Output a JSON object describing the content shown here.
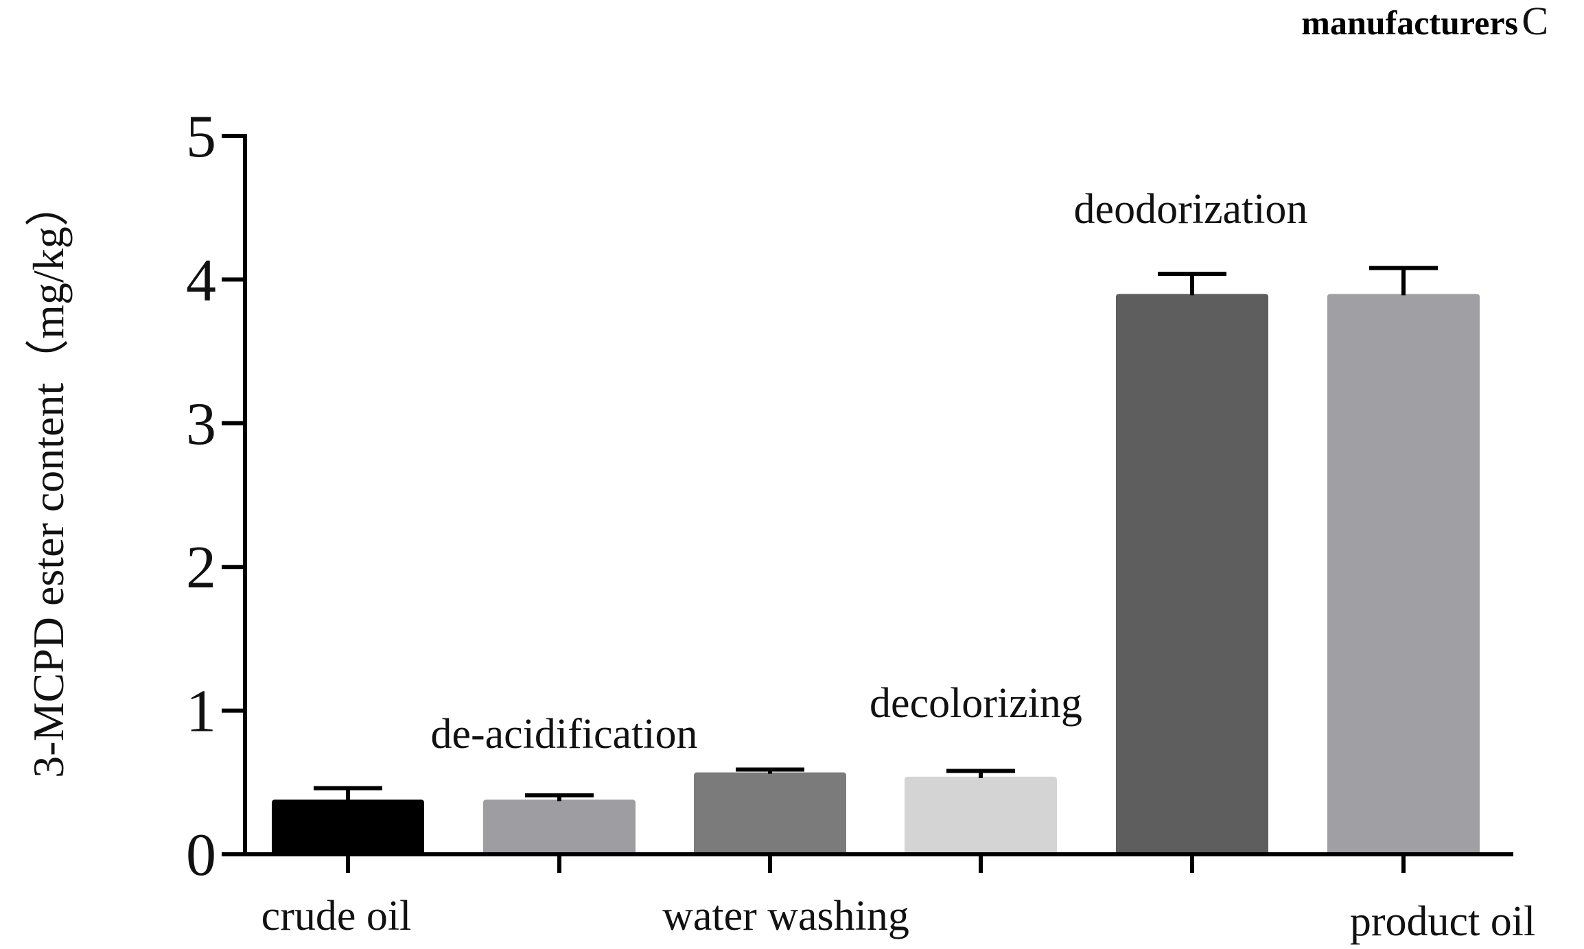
{
  "chart_data": {
    "type": "bar",
    "title": "manufacturers",
    "panel_label": "C",
    "ylabel": "3-MCPD ester content（mg/kg）",
    "ylim": [
      0,
      5
    ],
    "yticks": [
      "0",
      "1",
      "2",
      "3",
      "4",
      "5"
    ],
    "categories": [
      "crude oil",
      "de-acidification",
      "water washing",
      "decolorizing",
      "deodorization",
      "product oil"
    ],
    "values": [
      0.38,
      0.38,
      0.57,
      0.54,
      3.9,
      3.9
    ],
    "errors": [
      0.08,
      0.03,
      0.02,
      0.04,
      0.14,
      0.18
    ],
    "colors": [
      "#000000",
      "#9e9da2",
      "#7b7b7b",
      "#d4d4d4",
      "#5e5e5e",
      "#a09fa4"
    ],
    "grid": false,
    "legend": "none"
  }
}
